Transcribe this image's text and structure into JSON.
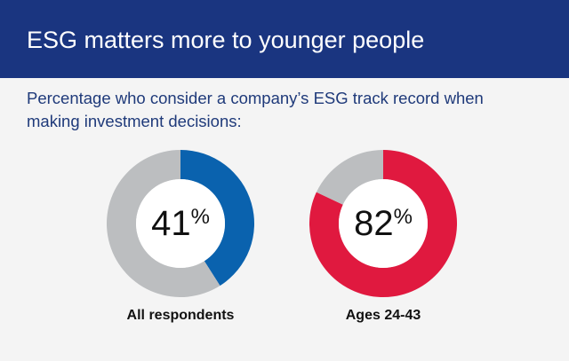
{
  "title": "ESG matters more to younger people",
  "subtitle": "Percentage who consider a company’s ESG track record when making investment decisions:",
  "chart_data": [
    {
      "type": "donut",
      "label": "All respondents",
      "values": [
        41,
        59
      ],
      "value_labels": [
        "41%",
        null
      ],
      "colors": [
        "#0a62ae",
        "#bcbec0"
      ]
    },
    {
      "type": "donut",
      "label": "Ages 24-43",
      "values": [
        82,
        18
      ],
      "value_labels": [
        "82%",
        null
      ],
      "colors": [
        "#e0193f",
        "#bcbec0"
      ]
    }
  ]
}
